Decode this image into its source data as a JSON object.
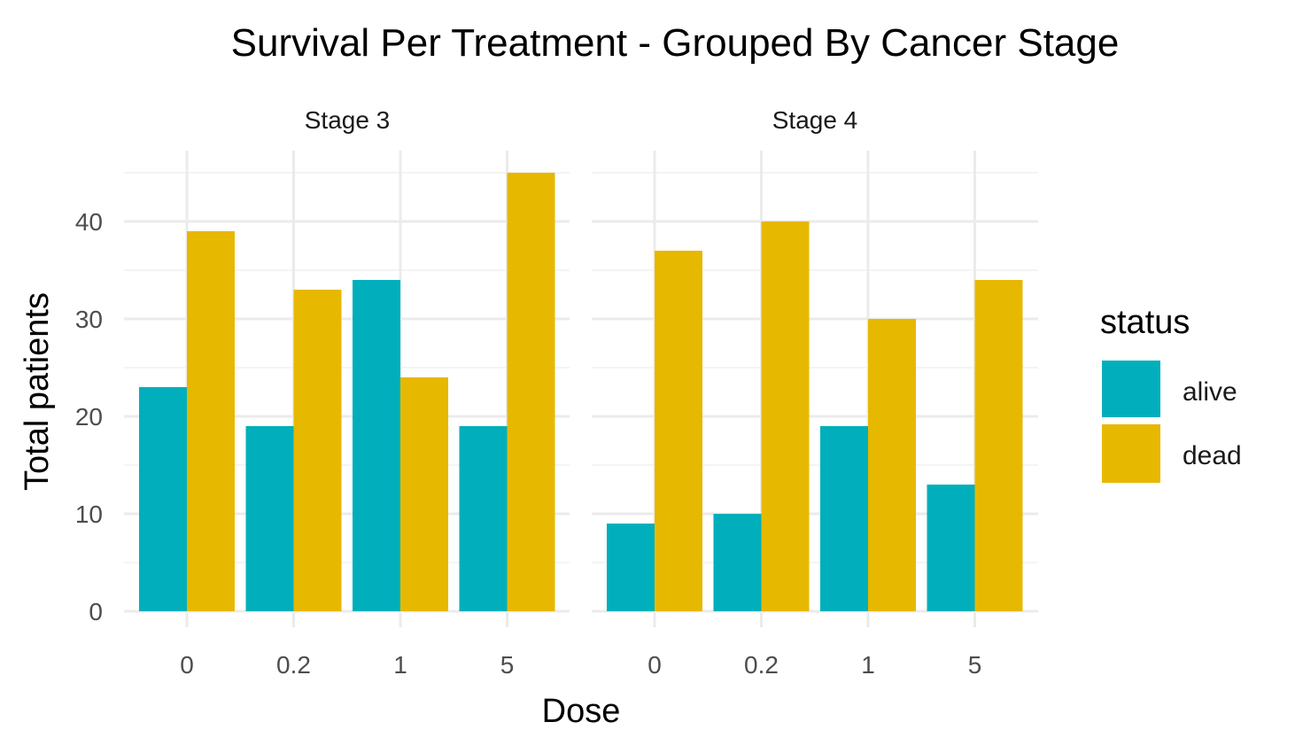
{
  "chart_data": {
    "type": "bar",
    "title": "Survival Per Treatment - Grouped By Cancer Stage",
    "xlabel": "Dose",
    "ylabel": "Total patients",
    "ylim": [
      0,
      47
    ],
    "yticks": [
      0,
      10,
      20,
      30,
      40
    ],
    "grid": true,
    "legend": {
      "title": "status",
      "position": "right"
    },
    "colors": {
      "alive": "#00AFBB",
      "dead": "#E7B800"
    },
    "categories": [
      "0",
      "0.2",
      "1",
      "5"
    ],
    "panels": [
      {
        "label": "Stage 3",
        "series": [
          {
            "name": "alive",
            "values": [
              23,
              19,
              34,
              19
            ]
          },
          {
            "name": "dead",
            "values": [
              39,
              33,
              24,
              45
            ]
          }
        ]
      },
      {
        "label": "Stage 4",
        "series": [
          {
            "name": "alive",
            "values": [
              9,
              10,
              19,
              13
            ]
          },
          {
            "name": "dead",
            "values": [
              37,
              40,
              30,
              34
            ]
          }
        ]
      }
    ]
  }
}
